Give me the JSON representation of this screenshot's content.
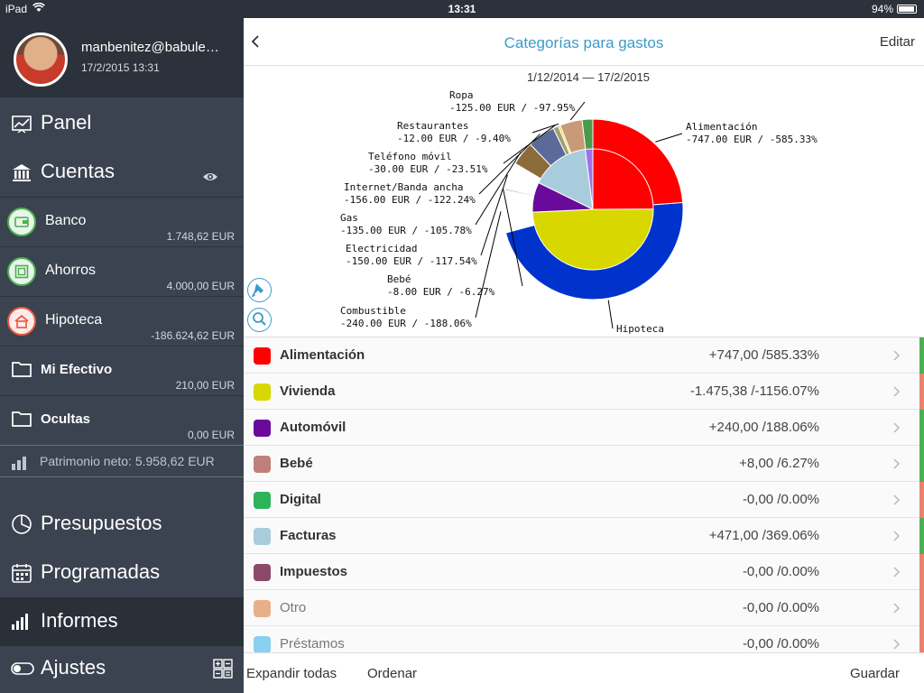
{
  "status_bar": {
    "carrier": "iPad",
    "time": "13:31",
    "battery": "94%"
  },
  "user": {
    "email": "manbenitez@babule…",
    "datetime": "17/2/2015 13:31"
  },
  "nav": {
    "panel": "Panel",
    "cuentas": "Cuentas",
    "presupuestos": "Presupuestos",
    "programadas": "Programadas",
    "informes": "Informes",
    "ajustes": "Ajustes"
  },
  "accounts": [
    {
      "name": "Banco",
      "value": "1.748,62 EUR",
      "icon": "wallet-icon",
      "color": "#4caf50"
    },
    {
      "name": "Ahorros",
      "value": "4.000,00 EUR",
      "icon": "safe-icon",
      "color": "#4caf50"
    },
    {
      "name": "Hipoteca",
      "value": "-186.624,62 EUR",
      "icon": "house-icon",
      "color": "#e8553c"
    },
    {
      "name": "Mi Efectivo",
      "value": "210,00 EUR",
      "icon": "folder-icon"
    },
    {
      "name": "Ocultas",
      "value": "0,00 EUR",
      "icon": "folder-icon"
    }
  ],
  "net_worth": "Patrimonio neto: 5.958,62 EUR",
  "header": {
    "title": "Categorías para gastos",
    "edit": "Editar"
  },
  "chart_data": {
    "type": "pie",
    "subtitle": "1/12/2014 — 17/2/2015",
    "outer_ring": [
      {
        "label": "Alimentación",
        "detail": "-747.00 EUR / -585.33%",
        "value": 747,
        "color": "#ff0000"
      },
      {
        "label": "Hipoteca",
        "detail": "",
        "value": 1475.38,
        "color": "#0033cc"
      },
      {
        "label": "Combustible",
        "detail": "-240.00 EUR / -188.06%",
        "value": 240,
        "color": "#ffffff"
      },
      {
        "label": "Bebé",
        "detail": "-8.00 EUR / -6.27%",
        "value": 8,
        "color": "#c0807a"
      },
      {
        "label": "Electricidad",
        "detail": "-150.00 EUR / -117.54%",
        "value": 150,
        "color": "#ffffff"
      },
      {
        "label": "Gas",
        "detail": "-135.00 EUR / -105.78%",
        "value": 135,
        "color": "#8b6b3a"
      },
      {
        "label": "Internet/Banda ancha",
        "detail": "-156.00 EUR / -122.24%",
        "value": 156,
        "color": "#5a6b9a"
      },
      {
        "label": "Teléfono móvil",
        "detail": "-30.00 EUR / -23.51%",
        "value": 30,
        "color": "#a0a070"
      },
      {
        "label": "Restaurantes",
        "detail": "-12.00 EUR / -9.40%",
        "value": 12,
        "color": "#e6d84a"
      },
      {
        "label": "Ropa",
        "detail": "-125.00 EUR / -97.95%",
        "value": 125,
        "color": "#c89a78"
      },
      {
        "label": "",
        "detail": "",
        "value": 60,
        "color": "#4a9a4a"
      }
    ],
    "inner_ring": [
      {
        "label": "Alimentación",
        "value": 747,
        "color": "#ff0000"
      },
      {
        "label": "Vivienda",
        "value": 1475.38,
        "color": "#d8d800"
      },
      {
        "label": "Automóvil",
        "value": 240,
        "color": "#6a0a9a"
      },
      {
        "label": "Facturas",
        "value": 471,
        "color": "#a8ccdc"
      },
      {
        "label": "",
        "value": 60,
        "color": "#a070e8"
      }
    ]
  },
  "categories": [
    {
      "name": "Alimentación",
      "value": "+747,00 /585.33%",
      "color": "#ff0000",
      "edge": "#4caf50"
    },
    {
      "name": "Vivienda",
      "value": "-1.475,38 /-1156.07%",
      "color": "#d8d800",
      "edge": "#e8836c"
    },
    {
      "name": "Automóvil",
      "value": "+240,00 /188.06%",
      "color": "#6a0a9a",
      "edge": "#4caf50"
    },
    {
      "name": "Bebé",
      "value": "+8,00 /6.27%",
      "color": "#c0807a",
      "edge": "#4caf50"
    },
    {
      "name": "Digital",
      "value": "-0,00 /0.00%",
      "color": "#2db35a",
      "edge": "#e8836c"
    },
    {
      "name": "Facturas",
      "value": "+471,00 /369.06%",
      "color": "#a8ccdc",
      "edge": "#4caf50"
    },
    {
      "name": "Impuestos",
      "value": "-0,00 /0.00%",
      "color": "#8b4a6a",
      "edge": "#e8836c"
    },
    {
      "name": "Otro",
      "value": "-0,00 /0.00%",
      "color": "#e8b08a",
      "edge": "#e8836c"
    },
    {
      "name": "Préstamos",
      "value": "-0,00 /0.00%",
      "color": "#8ad0f0",
      "edge": "#e8836c"
    }
  ],
  "toolbar": {
    "expand": "Expandir todas",
    "sort": "Ordenar",
    "save": "Guardar"
  }
}
